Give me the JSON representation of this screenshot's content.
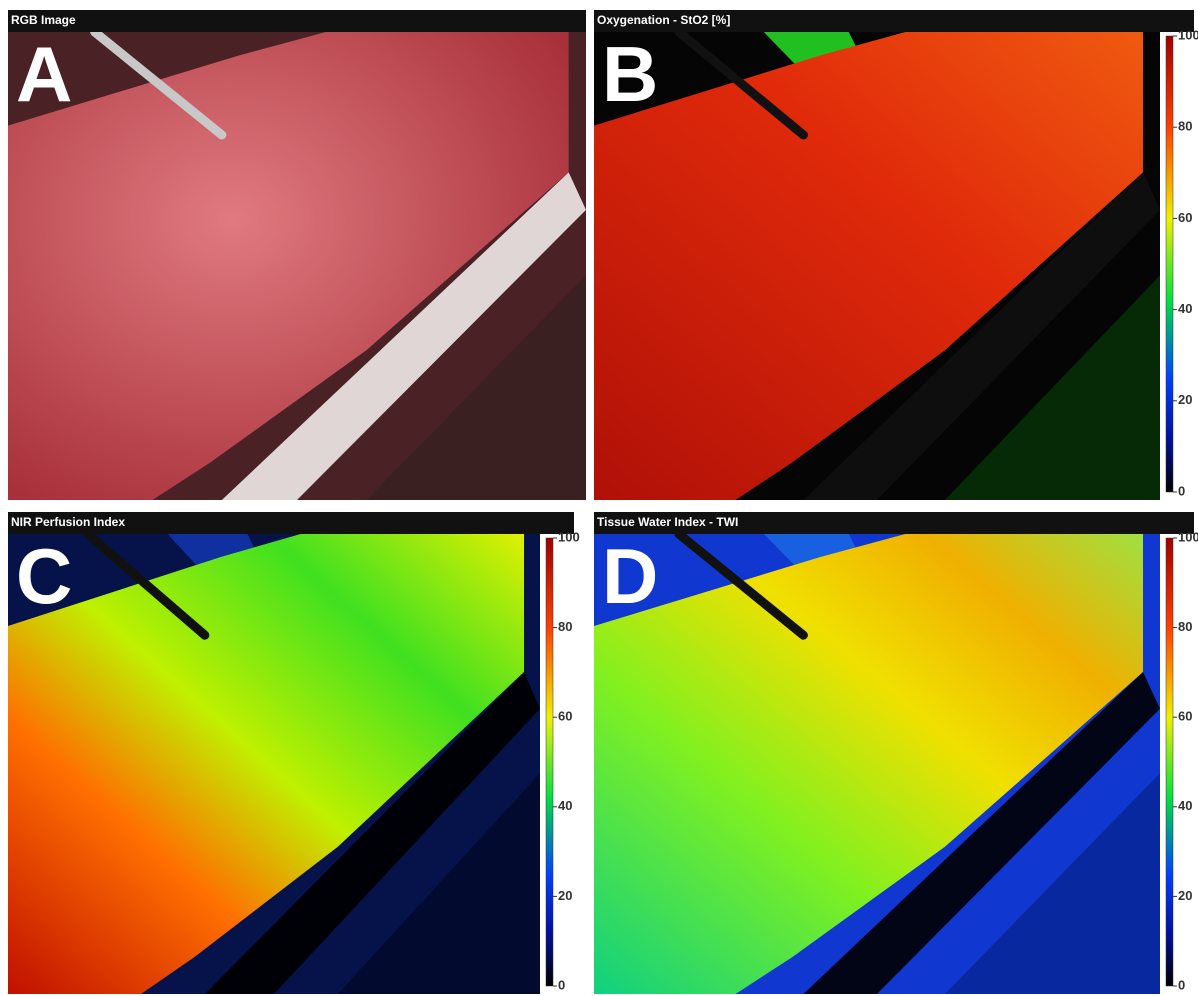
{
  "panels": [
    {
      "label": "A",
      "title": "RGB Image"
    },
    {
      "label": "B",
      "title": "Oxygenation - StO2 [%]",
      "colorbar": {
        "lim": [
          0,
          100
        ],
        "ticks": [
          0,
          20,
          40,
          60,
          80,
          100
        ]
      }
    },
    {
      "label": "C",
      "title": "NIR Perfusion Index",
      "colorbar": {
        "lim": [
          0,
          100
        ],
        "ticks": [
          0,
          20,
          40,
          60,
          80,
          100
        ]
      }
    },
    {
      "label": "D",
      "title": "Tissue Water Index - TWI",
      "colorbar": {
        "lim": [
          0,
          100
        ],
        "ticks": [
          0,
          20,
          40,
          60,
          80,
          100
        ]
      }
    }
  ]
}
